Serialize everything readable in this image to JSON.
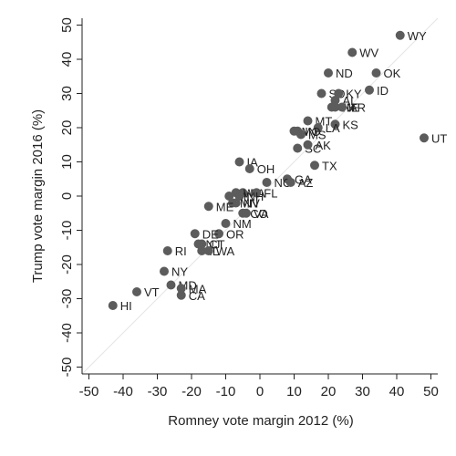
{
  "chart_data": {
    "type": "scatter",
    "title": "",
    "xlabel": "Romney vote margin 2012 (%)",
    "ylabel": "Trump vote margin 2016 (%)",
    "xlim": [
      -52,
      52
    ],
    "ylim": [
      -52,
      52
    ],
    "xticks": [
      "-50",
      "-40",
      "-30",
      "-20",
      "-10",
      "0",
      "10",
      "20",
      "30",
      "40",
      "50"
    ],
    "yticks": [
      "-50",
      "-40",
      "-30",
      "-20",
      "-10",
      "0",
      "10",
      "20",
      "30",
      "40",
      "50"
    ],
    "grid": false,
    "diagonal_reference_line": true,
    "points": [
      {
        "label": "WY",
        "x": 41,
        "y": 47
      },
      {
        "label": "WV",
        "x": 27,
        "y": 42
      },
      {
        "label": "OK",
        "x": 34,
        "y": 36
      },
      {
        "label": "ND",
        "x": 20,
        "y": 36
      },
      {
        "label": "ID",
        "x": 32,
        "y": 31
      },
      {
        "label": "SD",
        "x": 18,
        "y": 30
      },
      {
        "label": "KY",
        "x": 23,
        "y": 30
      },
      {
        "label": "AL",
        "x": 22,
        "y": 28
      },
      {
        "label": "TN",
        "x": 21,
        "y": 26
      },
      {
        "label": "NE",
        "x": 22,
        "y": 26
      },
      {
        "label": "AR",
        "x": 24,
        "y": 26
      },
      {
        "label": "KS",
        "x": 22,
        "y": 21
      },
      {
        "label": "MT",
        "x": 14,
        "y": 22
      },
      {
        "label": "LA",
        "x": 17,
        "y": 20
      },
      {
        "label": "MO",
        "x": 10,
        "y": 19
      },
      {
        "label": "MS",
        "x": 12,
        "y": 18
      },
      {
        "label": "IN",
        "x": 11,
        "y": 19
      },
      {
        "label": "SC",
        "x": 11,
        "y": 14
      },
      {
        "label": "AK",
        "x": 14,
        "y": 15
      },
      {
        "label": "UT",
        "x": 48,
        "y": 17
      },
      {
        "label": "TX",
        "x": 16,
        "y": 9
      },
      {
        "label": "IA",
        "x": -6,
        "y": 10
      },
      {
        "label": "OH",
        "x": -3,
        "y": 8
      },
      {
        "label": "GA",
        "x": 8,
        "y": 5
      },
      {
        "label": "NC",
        "x": 2,
        "y": 4
      },
      {
        "label": "AZ",
        "x": 9,
        "y": 4
      },
      {
        "label": "PA",
        "x": -5,
        "y": 1
      },
      {
        "label": "WI",
        "x": -7,
        "y": 1
      },
      {
        "label": "MI",
        "x": -9,
        "y": 0
      },
      {
        "label": "FL",
        "x": -1,
        "y": 1
      },
      {
        "label": "NH",
        "x": -6,
        "y": 0
      },
      {
        "label": "MN",
        "x": -8,
        "y": -2
      },
      {
        "label": "CO",
        "x": -5,
        "y": -5
      },
      {
        "label": "NV",
        "x": -7,
        "y": -2
      },
      {
        "label": "VA",
        "x": -4,
        "y": -5
      },
      {
        "label": "ME",
        "x": -15,
        "y": -3
      },
      {
        "label": "NM",
        "x": -10,
        "y": -8
      },
      {
        "label": "OR",
        "x": -12,
        "y": -11
      },
      {
        "label": "DE",
        "x": -19,
        "y": -11
      },
      {
        "label": "CT",
        "x": -17,
        "y": -14
      },
      {
        "label": "NJ",
        "x": -18,
        "y": -14
      },
      {
        "label": "IL",
        "x": -17,
        "y": -16
      },
      {
        "label": "RI",
        "x": -27,
        "y": -16
      },
      {
        "label": "WA",
        "x": -15,
        "y": -16
      },
      {
        "label": "NY",
        "x": -28,
        "y": -22
      },
      {
        "label": "MD",
        "x": -26,
        "y": -26
      },
      {
        "label": "MA",
        "x": -23,
        "y": -27
      },
      {
        "label": "CA",
        "x": -23,
        "y": -29
      },
      {
        "label": "VT",
        "x": -36,
        "y": -28
      },
      {
        "label": "HI",
        "x": -43,
        "y": -32
      }
    ]
  }
}
